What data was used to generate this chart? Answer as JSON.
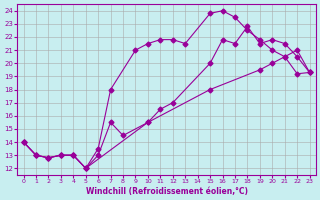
{
  "xlabel": "Windchill (Refroidissement éolien,°C)",
  "bg_color": "#c8eef0",
  "line_color": "#990099",
  "xlim": [
    -0.5,
    23.5
  ],
  "ylim": [
    11.5,
    24.5
  ],
  "xticks": [
    0,
    1,
    2,
    3,
    4,
    5,
    6,
    7,
    8,
    9,
    10,
    11,
    12,
    13,
    14,
    15,
    16,
    17,
    18,
    19,
    20,
    21,
    22,
    23
  ],
  "yticks": [
    12,
    13,
    14,
    15,
    16,
    17,
    18,
    19,
    20,
    21,
    22,
    23,
    24
  ],
  "line1_x": [
    0,
    1,
    2,
    3,
    4,
    5,
    10,
    15,
    19,
    20,
    21,
    22,
    23
  ],
  "line1_y": [
    14.0,
    13.0,
    12.8,
    13.0,
    13.0,
    12.0,
    15.5,
    18.0,
    19.5,
    20.0,
    20.5,
    21.0,
    19.3
  ],
  "line2_x": [
    0,
    1,
    2,
    3,
    4,
    5,
    6,
    7,
    8,
    10,
    11,
    12,
    15,
    16,
    17,
    18,
    19,
    20,
    21,
    22,
    23
  ],
  "line2_y": [
    14.0,
    13.0,
    12.8,
    13.0,
    13.0,
    12.0,
    13.0,
    15.5,
    14.5,
    15.5,
    16.5,
    17.0,
    20.0,
    21.8,
    21.5,
    22.8,
    21.5,
    21.8,
    21.5,
    20.5,
    19.3
  ],
  "line3_x": [
    0,
    1,
    2,
    3,
    4,
    5,
    6,
    7,
    9,
    10,
    11,
    12,
    13,
    15,
    16,
    17,
    18,
    19,
    20,
    21,
    22,
    23
  ],
  "line3_y": [
    14.0,
    13.0,
    12.8,
    13.0,
    13.0,
    12.0,
    13.5,
    18.0,
    21.0,
    21.5,
    21.8,
    21.8,
    21.5,
    23.8,
    24.0,
    23.5,
    22.5,
    21.8,
    21.0,
    20.5,
    19.2,
    19.3
  ],
  "grid_color": "#aaaaaa",
  "marker": "D",
  "markersize": 2.5,
  "linewidth": 0.8
}
